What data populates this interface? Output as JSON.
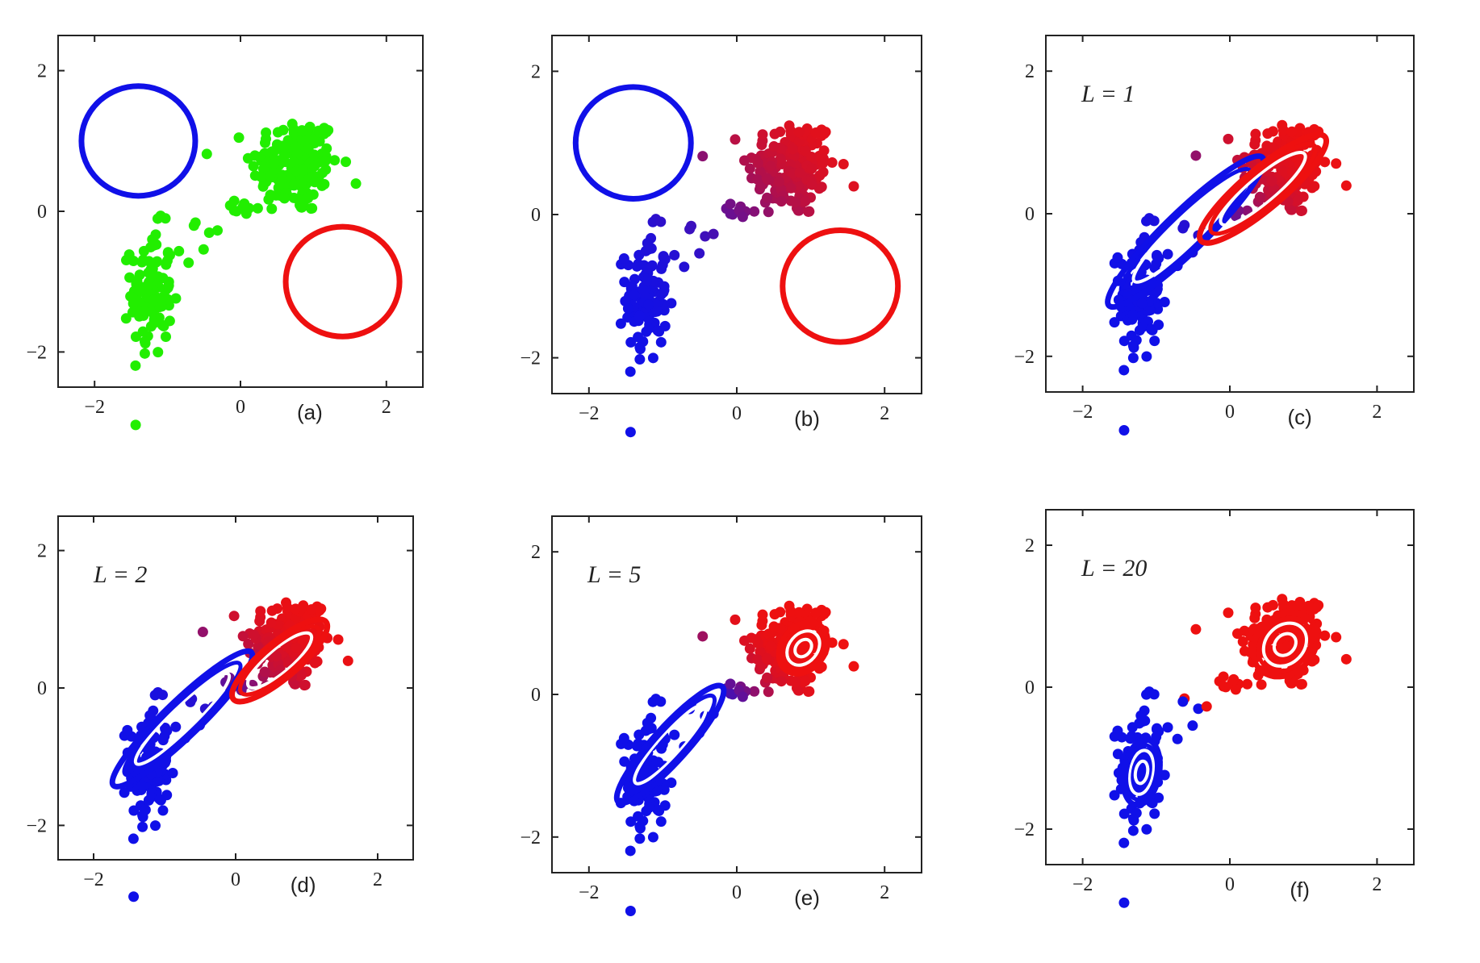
{
  "colors": {
    "green": "#22ee00",
    "blue": "#1010e8",
    "red": "#ee1010",
    "axis": "#222222",
    "contour_inner": "#ffffff"
  },
  "chart_data": [
    {
      "type": "scatter",
      "panel": "a",
      "caption": "(a)",
      "annotation": "",
      "xlim": [
        -2.5,
        2.5
      ],
      "ylim": [
        -2.5,
        2.5
      ],
      "xticks": [
        -2,
        0,
        2
      ],
      "yticks": [
        -2,
        0,
        2
      ],
      "point_color_mode": "green",
      "ellipses": [
        {
          "color": "blue",
          "cx": -1.4,
          "cy": 1.0,
          "rx": 0.78,
          "ry": 0.78,
          "angle": 0,
          "rings": 1
        },
        {
          "color": "red",
          "cx": 1.4,
          "cy": -1.0,
          "rx": 0.78,
          "ry": 0.78,
          "angle": 0,
          "rings": 1
        }
      ]
    },
    {
      "type": "scatter",
      "panel": "b",
      "caption": "(b)",
      "annotation": "",
      "xlim": [
        -2.5,
        2.5
      ],
      "ylim": [
        -2.5,
        2.5
      ],
      "xticks": [
        -2,
        0,
        2
      ],
      "yticks": [
        -2,
        0,
        2
      ],
      "point_color_mode": "gradient_soft",
      "ellipses": [
        {
          "color": "blue",
          "cx": -1.4,
          "cy": 1.0,
          "rx": 0.78,
          "ry": 0.78,
          "angle": 0,
          "rings": 1
        },
        {
          "color": "red",
          "cx": 1.4,
          "cy": -1.0,
          "rx": 0.78,
          "ry": 0.78,
          "angle": 0,
          "rings": 1
        }
      ]
    },
    {
      "type": "scatter",
      "panel": "c",
      "caption": "(c)",
      "annotation": "L = 1",
      "xlim": [
        -2.5,
        2.5
      ],
      "ylim": [
        -2.5,
        2.5
      ],
      "xticks": [
        -2,
        0,
        2
      ],
      "yticks": [
        -2,
        0,
        2
      ],
      "point_color_mode": "gradient_mid",
      "ellipses": [
        {
          "color": "blue",
          "cx": -0.6,
          "cy": -0.25,
          "rx": 1.45,
          "ry": 0.28,
          "angle": 44,
          "rings": 2
        },
        {
          "color": "red",
          "cx": 0.45,
          "cy": 0.35,
          "rx": 1.1,
          "ry": 0.28,
          "angle": 40,
          "rings": 2
        }
      ]
    },
    {
      "type": "scatter",
      "panel": "d",
      "caption": "(d)",
      "annotation": "L = 2",
      "xlim": [
        -2.5,
        2.5
      ],
      "ylim": [
        -2.5,
        2.5
      ],
      "xticks": [
        -2,
        0,
        2
      ],
      "yticks": [
        -2,
        0,
        2
      ],
      "point_color_mode": "gradient_mid",
      "ellipses": [
        {
          "color": "blue",
          "cx": -0.75,
          "cy": -0.45,
          "rx": 1.35,
          "ry": 0.26,
          "angle": 44,
          "rings": 2
        },
        {
          "color": "red",
          "cx": 0.62,
          "cy": 0.4,
          "rx": 0.85,
          "ry": 0.26,
          "angle": 40,
          "rings": 2
        }
      ]
    },
    {
      "type": "scatter",
      "panel": "e",
      "caption": "(e)",
      "annotation": "L = 5",
      "xlim": [
        -2.5,
        2.5
      ],
      "ylim": [
        -2.5,
        2.5
      ],
      "xticks": [
        -2,
        0,
        2
      ],
      "yticks": [
        -2,
        0,
        2
      ],
      "point_color_mode": "gradient_sharp",
      "ellipses": [
        {
          "color": "blue",
          "cx": -0.9,
          "cy": -0.7,
          "rx": 1.05,
          "ry": 0.24,
          "angle": 48,
          "rings": 2
        },
        {
          "color": "red",
          "cx": 0.9,
          "cy": 0.65,
          "rx": 0.38,
          "ry": 0.3,
          "angle": 50,
          "rings": 3
        }
      ]
    },
    {
      "type": "scatter",
      "panel": "f",
      "caption": "(f)",
      "annotation": "L = 20",
      "xlim": [
        -2.5,
        2.5
      ],
      "ylim": [
        -2.5,
        2.5
      ],
      "xticks": [
        -2,
        0,
        2
      ],
      "yticks": [
        -2,
        0,
        2
      ],
      "point_color_mode": "binary",
      "ellipses": [
        {
          "color": "blue",
          "cx": -1.2,
          "cy": -1.2,
          "rx": 0.45,
          "ry": 0.25,
          "angle": 80,
          "rings": 3
        },
        {
          "color": "red",
          "cx": 0.75,
          "cy": 0.6,
          "rx": 0.48,
          "ry": 0.4,
          "angle": 45,
          "rings": 3
        }
      ]
    }
  ]
}
